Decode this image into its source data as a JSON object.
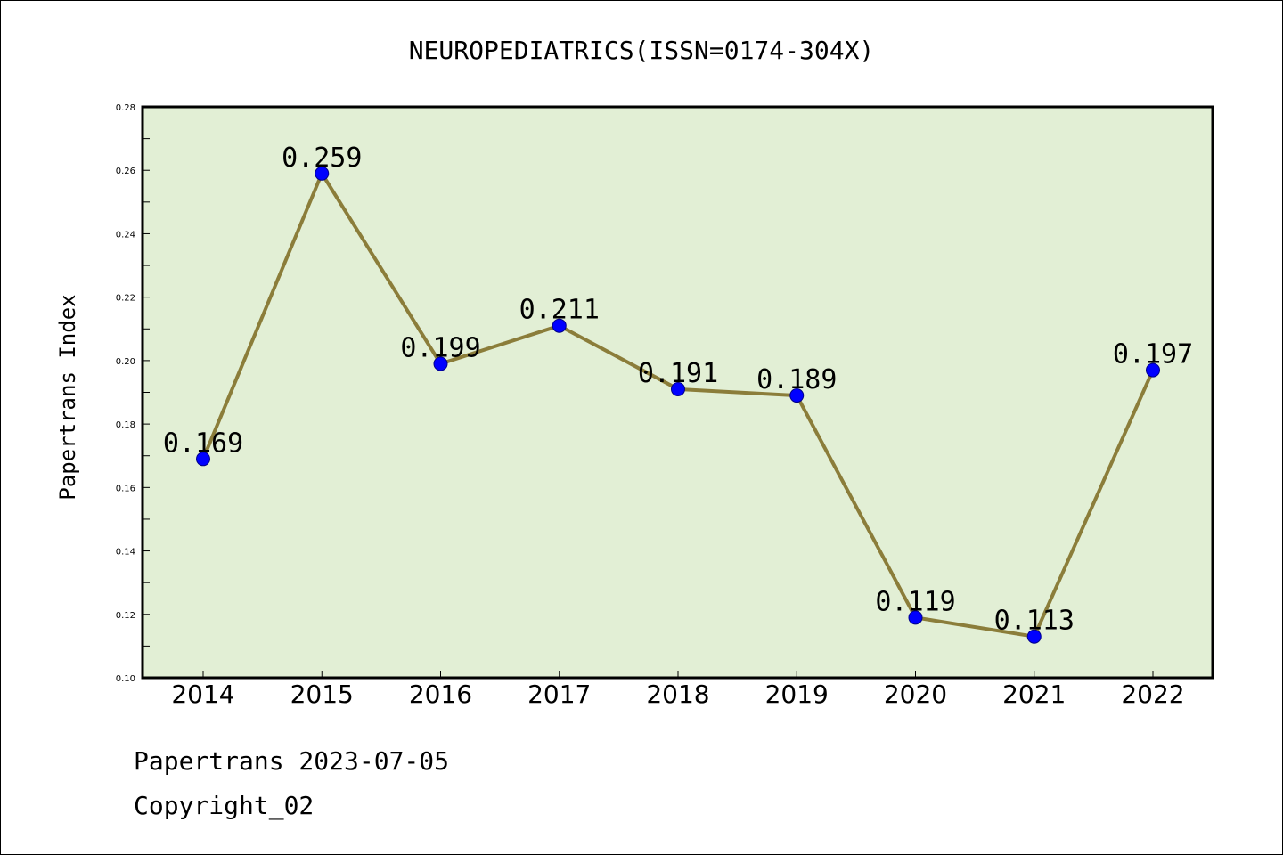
{
  "chart_data": {
    "type": "line",
    "title": "NEUROPEDIATRICS(ISSN=0174-304X)",
    "xlabel": "",
    "ylabel": "Papertrans Index",
    "categories": [
      "2014",
      "2015",
      "2016",
      "2017",
      "2018",
      "2019",
      "2020",
      "2021",
      "2022"
    ],
    "values": [
      0.169,
      0.259,
      0.199,
      0.211,
      0.191,
      0.189,
      0.119,
      0.113,
      0.197
    ],
    "data_labels": [
      "0.169",
      "0.259",
      "0.199",
      "0.211",
      "0.191",
      "0.189",
      "0.119",
      "0.113",
      "0.197"
    ],
    "ylim": [
      0.1,
      0.28
    ],
    "yticks": [
      "0.10",
      "0.12",
      "0.14",
      "0.16",
      "0.18",
      "0.20",
      "0.22",
      "0.24",
      "0.26",
      "0.28"
    ],
    "grid": false,
    "colors": {
      "line": "#8b7d3a",
      "marker": "#0000ff",
      "plot_bg": "#e2efd5"
    }
  },
  "footer": {
    "line1": "Papertrans 2023-07-05",
    "line2": "Copyright_02"
  }
}
